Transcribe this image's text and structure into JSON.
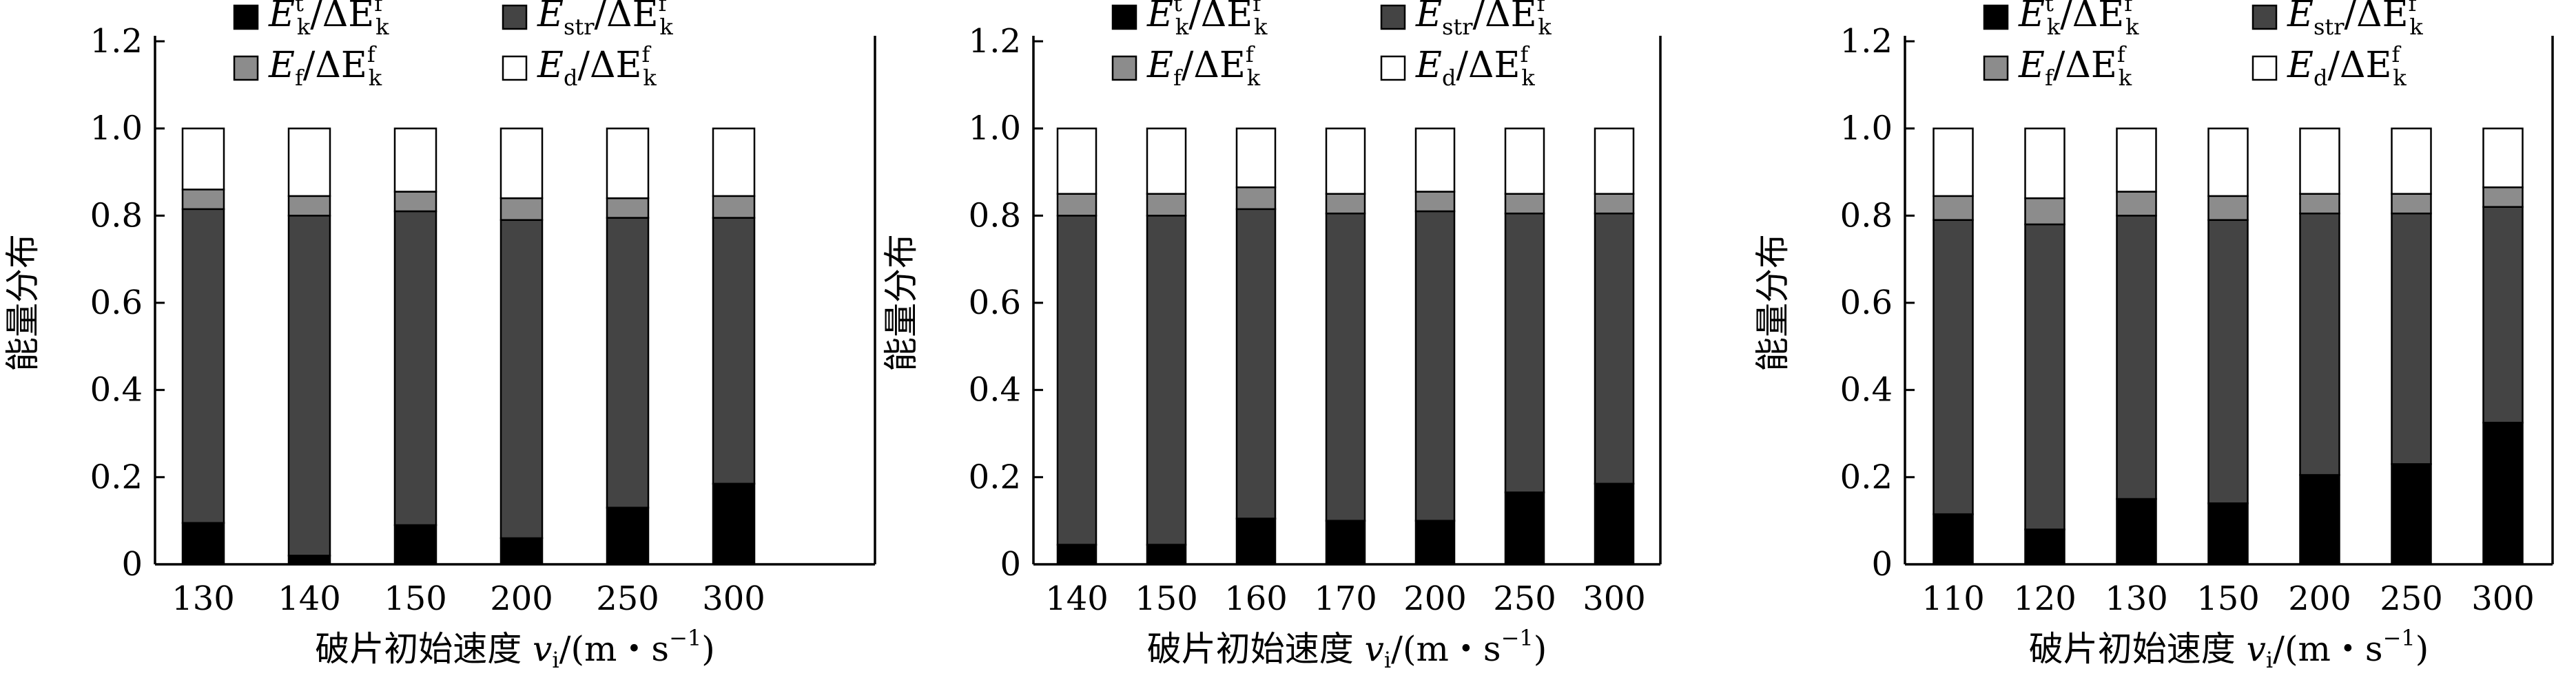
{
  "chart_data": [
    {
      "type": "bar",
      "stacked": true,
      "categories": [
        "130",
        "140",
        "150",
        "200",
        "250",
        "300"
      ],
      "series": [
        {
          "name": "E_k^t/ΔE_k^f",
          "color": "#000000",
          "values": [
            0.095,
            0.02,
            0.09,
            0.06,
            0.13,
            0.185
          ]
        },
        {
          "name": "E_str/ΔE_k^f",
          "color": "#444444",
          "values": [
            0.72,
            0.78,
            0.72,
            0.73,
            0.665,
            0.61
          ]
        },
        {
          "name": "E_f/ΔE_k^f",
          "color": "#8c8c8c",
          "values": [
            0.045,
            0.045,
            0.045,
            0.05,
            0.045,
            0.05
          ]
        },
        {
          "name": "E_d/ΔE_k^f",
          "color": "#ffffff",
          "values": [
            0.14,
            0.155,
            0.145,
            0.16,
            0.16,
            0.155
          ]
        }
      ],
      "ylabel": "能量分布",
      "xlabel": "破片初始速度 v_i/(m・s^-1)",
      "ylim": [
        0,
        1.2
      ],
      "yticks": [
        "0",
        "0.2",
        "0.4",
        "0.6",
        "0.8",
        "1.0",
        "1.2"
      ],
      "grid": false,
      "legend_position": "top"
    },
    {
      "type": "bar",
      "stacked": true,
      "categories": [
        "140",
        "150",
        "160",
        "170",
        "200",
        "250",
        "300"
      ],
      "series": [
        {
          "name": "E_k^t/ΔE_k^f",
          "color": "#000000",
          "values": [
            0.045,
            0.045,
            0.105,
            0.1,
            0.1,
            0.165,
            0.185
          ]
        },
        {
          "name": "E_str/ΔE_k^f",
          "color": "#444444",
          "values": [
            0.755,
            0.755,
            0.71,
            0.705,
            0.71,
            0.64,
            0.62
          ]
        },
        {
          "name": "E_f/ΔE_k^f",
          "color": "#8c8c8c",
          "values": [
            0.05,
            0.05,
            0.05,
            0.045,
            0.045,
            0.045,
            0.045
          ]
        },
        {
          "name": "E_d/ΔE_k^f",
          "color": "#ffffff",
          "values": [
            0.15,
            0.15,
            0.135,
            0.15,
            0.145,
            0.15,
            0.15
          ]
        }
      ],
      "ylabel": "能量分布",
      "xlabel": "破片初始速度 v_i/(m・s^-1)",
      "ylim": [
        0,
        1.2
      ],
      "yticks": [
        "0",
        "0.2",
        "0.4",
        "0.6",
        "0.8",
        "1.0",
        "1.2"
      ],
      "grid": false,
      "legend_position": "top"
    },
    {
      "type": "bar",
      "stacked": true,
      "categories": [
        "110",
        "120",
        "130",
        "150",
        "200",
        "250",
        "300"
      ],
      "series": [
        {
          "name": "E_k^t/ΔE_k^f",
          "color": "#000000",
          "values": [
            0.115,
            0.08,
            0.15,
            0.14,
            0.205,
            0.23,
            0.325
          ]
        },
        {
          "name": "E_str/ΔE_k^f",
          "color": "#444444",
          "values": [
            0.675,
            0.7,
            0.65,
            0.65,
            0.6,
            0.575,
            0.495
          ]
        },
        {
          "name": "E_f/ΔE_k^f",
          "color": "#8c8c8c",
          "values": [
            0.055,
            0.06,
            0.055,
            0.055,
            0.045,
            0.045,
            0.045
          ]
        },
        {
          "name": "E_d/ΔE_k^f",
          "color": "#ffffff",
          "values": [
            0.155,
            0.16,
            0.145,
            0.155,
            0.15,
            0.15,
            0.135
          ]
        }
      ],
      "ylabel": "能量分布",
      "xlabel": "破片初始速度 v_i/(m・s^-1)",
      "ylim": [
        0,
        1.2
      ],
      "yticks": [
        "0",
        "0.2",
        "0.4",
        "0.6",
        "0.8",
        "1.0",
        "1.2"
      ],
      "grid": false,
      "legend_position": "top"
    }
  ],
  "legend_labels": {
    "ek": {
      "main": "E",
      "sub": "k",
      "sup": "t",
      "rest": "/ΔE",
      "rsub": "k",
      "rsup": "f"
    },
    "estr": {
      "main": "E",
      "sub": "str",
      "rest": "/ΔE",
      "rsub": "k",
      "rsup": "f"
    },
    "ef": {
      "main": "E",
      "sub": "f",
      "rest": "/ΔE",
      "rsub": "k",
      "rsup": "f"
    },
    "ed": {
      "main": "E",
      "sub": "d",
      "rest": "/ΔE",
      "rsub": "k",
      "rsup": "f"
    }
  },
  "xlabel_parts": {
    "cn": "破片初始速度 ",
    "v": "v",
    "vsub": "i",
    "unit": "/(m・s",
    "exp": "−1",
    "close": ")"
  }
}
